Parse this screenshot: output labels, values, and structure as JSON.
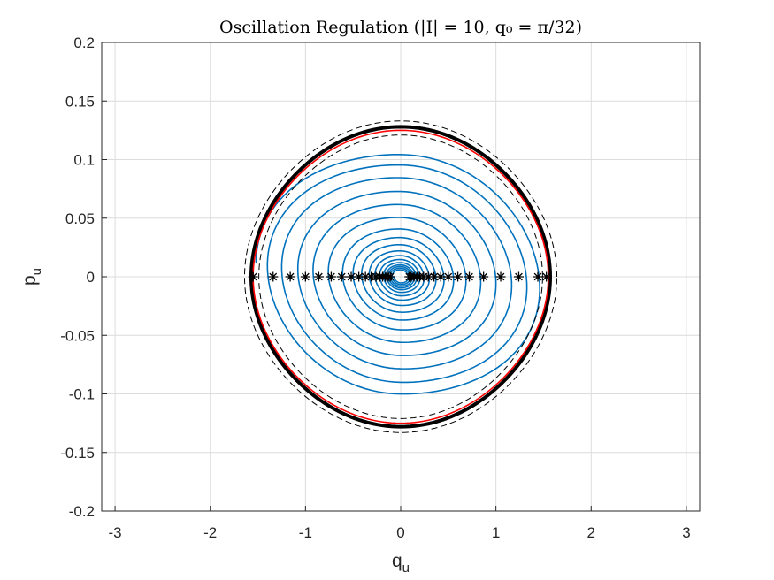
{
  "chart_data": {
    "type": "line",
    "title": "Oscillation Regulation (|I| = 10, q₀ = π/32)",
    "xlabel": "q",
    "xlabel_sub": "u",
    "ylabel": "p",
    "ylabel_sub": "u",
    "xlim": [
      -3.14,
      3.14
    ],
    "ylim": [
      -0.2,
      0.2
    ],
    "xticks": [
      -3,
      -2,
      -1,
      0,
      1,
      2,
      3
    ],
    "xtick_labels": [
      "-3",
      "-2",
      "-1",
      "0",
      "1",
      "2",
      "3"
    ],
    "yticks": [
      0.2,
      0.15,
      0.1,
      0.05,
      0,
      -0.05,
      -0.1,
      -0.15,
      -0.2
    ],
    "ytick_labels": [
      "0.2",
      "0.15",
      "0.1",
      "0.05",
      "0",
      "-0.05",
      "-0.1",
      "-0.15",
      "-0.2"
    ],
    "grid": true,
    "legend": "none",
    "series": [
      {
        "kind": "spiral-trajectory",
        "color": "#0072BD",
        "q_amplitudes": [
          1.52,
          1.4,
          1.25,
          1.08,
          0.92,
          0.76,
          0.61,
          0.5,
          0.41,
          0.33,
          0.27,
          0.22,
          0.18,
          0.15,
          0.13,
          0.11,
          0.09,
          0.07
        ],
        "p_amplitude_ratio": 0.07,
        "tilt": 0.35
      },
      {
        "kind": "boundary-curve",
        "color": "#000000",
        "q_amplitude": 1.57,
        "p_amplitude": 0.128,
        "style": "solid-thick"
      },
      {
        "kind": "boundary-curve",
        "color": "#ff0000",
        "q_amplitude": 1.55,
        "p_amplitude": 0.125,
        "style": "solid"
      },
      {
        "kind": "boundary-curve",
        "color": "#000000",
        "q_amplitude": 1.64,
        "p_amplitude": 0.133,
        "style": "dashed"
      },
      {
        "kind": "boundary-curve",
        "color": "#000000",
        "q_amplitude": 1.49,
        "p_amplitude": 0.121,
        "style": "dashed"
      },
      {
        "kind": "crossing-markers",
        "marker": "*",
        "color": "#000000",
        "x": [
          -1.55,
          -1.34,
          -1.16,
          -1.0,
          -0.86,
          -0.73,
          -0.62,
          -0.52,
          -0.44,
          -0.37,
          -0.31,
          -0.26,
          -0.22,
          -0.19,
          -0.16,
          -0.13,
          -0.11,
          0.09,
          0.11,
          0.14,
          0.17,
          0.2,
          0.24,
          0.29,
          0.35,
          0.42,
          0.5,
          0.6,
          0.72,
          0.87,
          1.05,
          1.24,
          1.44,
          1.53
        ],
        "y": [
          0,
          0,
          0,
          0,
          0,
          0,
          0,
          0,
          0,
          0,
          0,
          0,
          0,
          0,
          0,
          0,
          0,
          0,
          0,
          0,
          0,
          0,
          0,
          0,
          0,
          0,
          0,
          0,
          0,
          0,
          0,
          0,
          0,
          0
        ]
      }
    ]
  }
}
